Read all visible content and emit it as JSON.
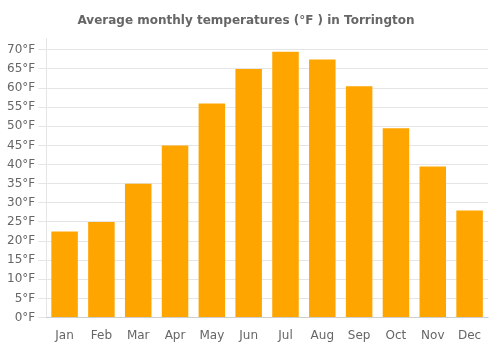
{
  "chart_data": {
    "type": "bar",
    "title": "Average monthly temperatures (°F ) in Torrington",
    "categories": [
      "Jan",
      "Feb",
      "Mar",
      "Apr",
      "May",
      "Jun",
      "Jul",
      "Aug",
      "Sep",
      "Oct",
      "Nov",
      "Dec"
    ],
    "values": [
      22.5,
      25.0,
      35.0,
      45.0,
      56.0,
      65.0,
      69.5,
      67.5,
      60.5,
      49.5,
      39.5,
      28.0
    ],
    "color": "#FFA500",
    "ylim": [
      0,
      73
    ],
    "yticks": [
      {
        "value": 0,
        "label": "0°F"
      },
      {
        "value": 5,
        "label": "5°F"
      },
      {
        "value": 10,
        "label": "10°F"
      },
      {
        "value": 15,
        "label": "15°F"
      },
      {
        "value": 20,
        "label": "20°F"
      },
      {
        "value": 25,
        "label": "25°F"
      },
      {
        "value": 30,
        "label": "30°F"
      },
      {
        "value": 35,
        "label": "35°F"
      },
      {
        "value": 40,
        "label": "40°F"
      },
      {
        "value": 45,
        "label": "45°F"
      },
      {
        "value": 50,
        "label": "50°F"
      },
      {
        "value": 55,
        "label": "55°F"
      },
      {
        "value": 60,
        "label": "60°F"
      },
      {
        "value": 65,
        "label": "65°F"
      },
      {
        "value": 70,
        "label": "70°F"
      }
    ],
    "grid": true
  }
}
